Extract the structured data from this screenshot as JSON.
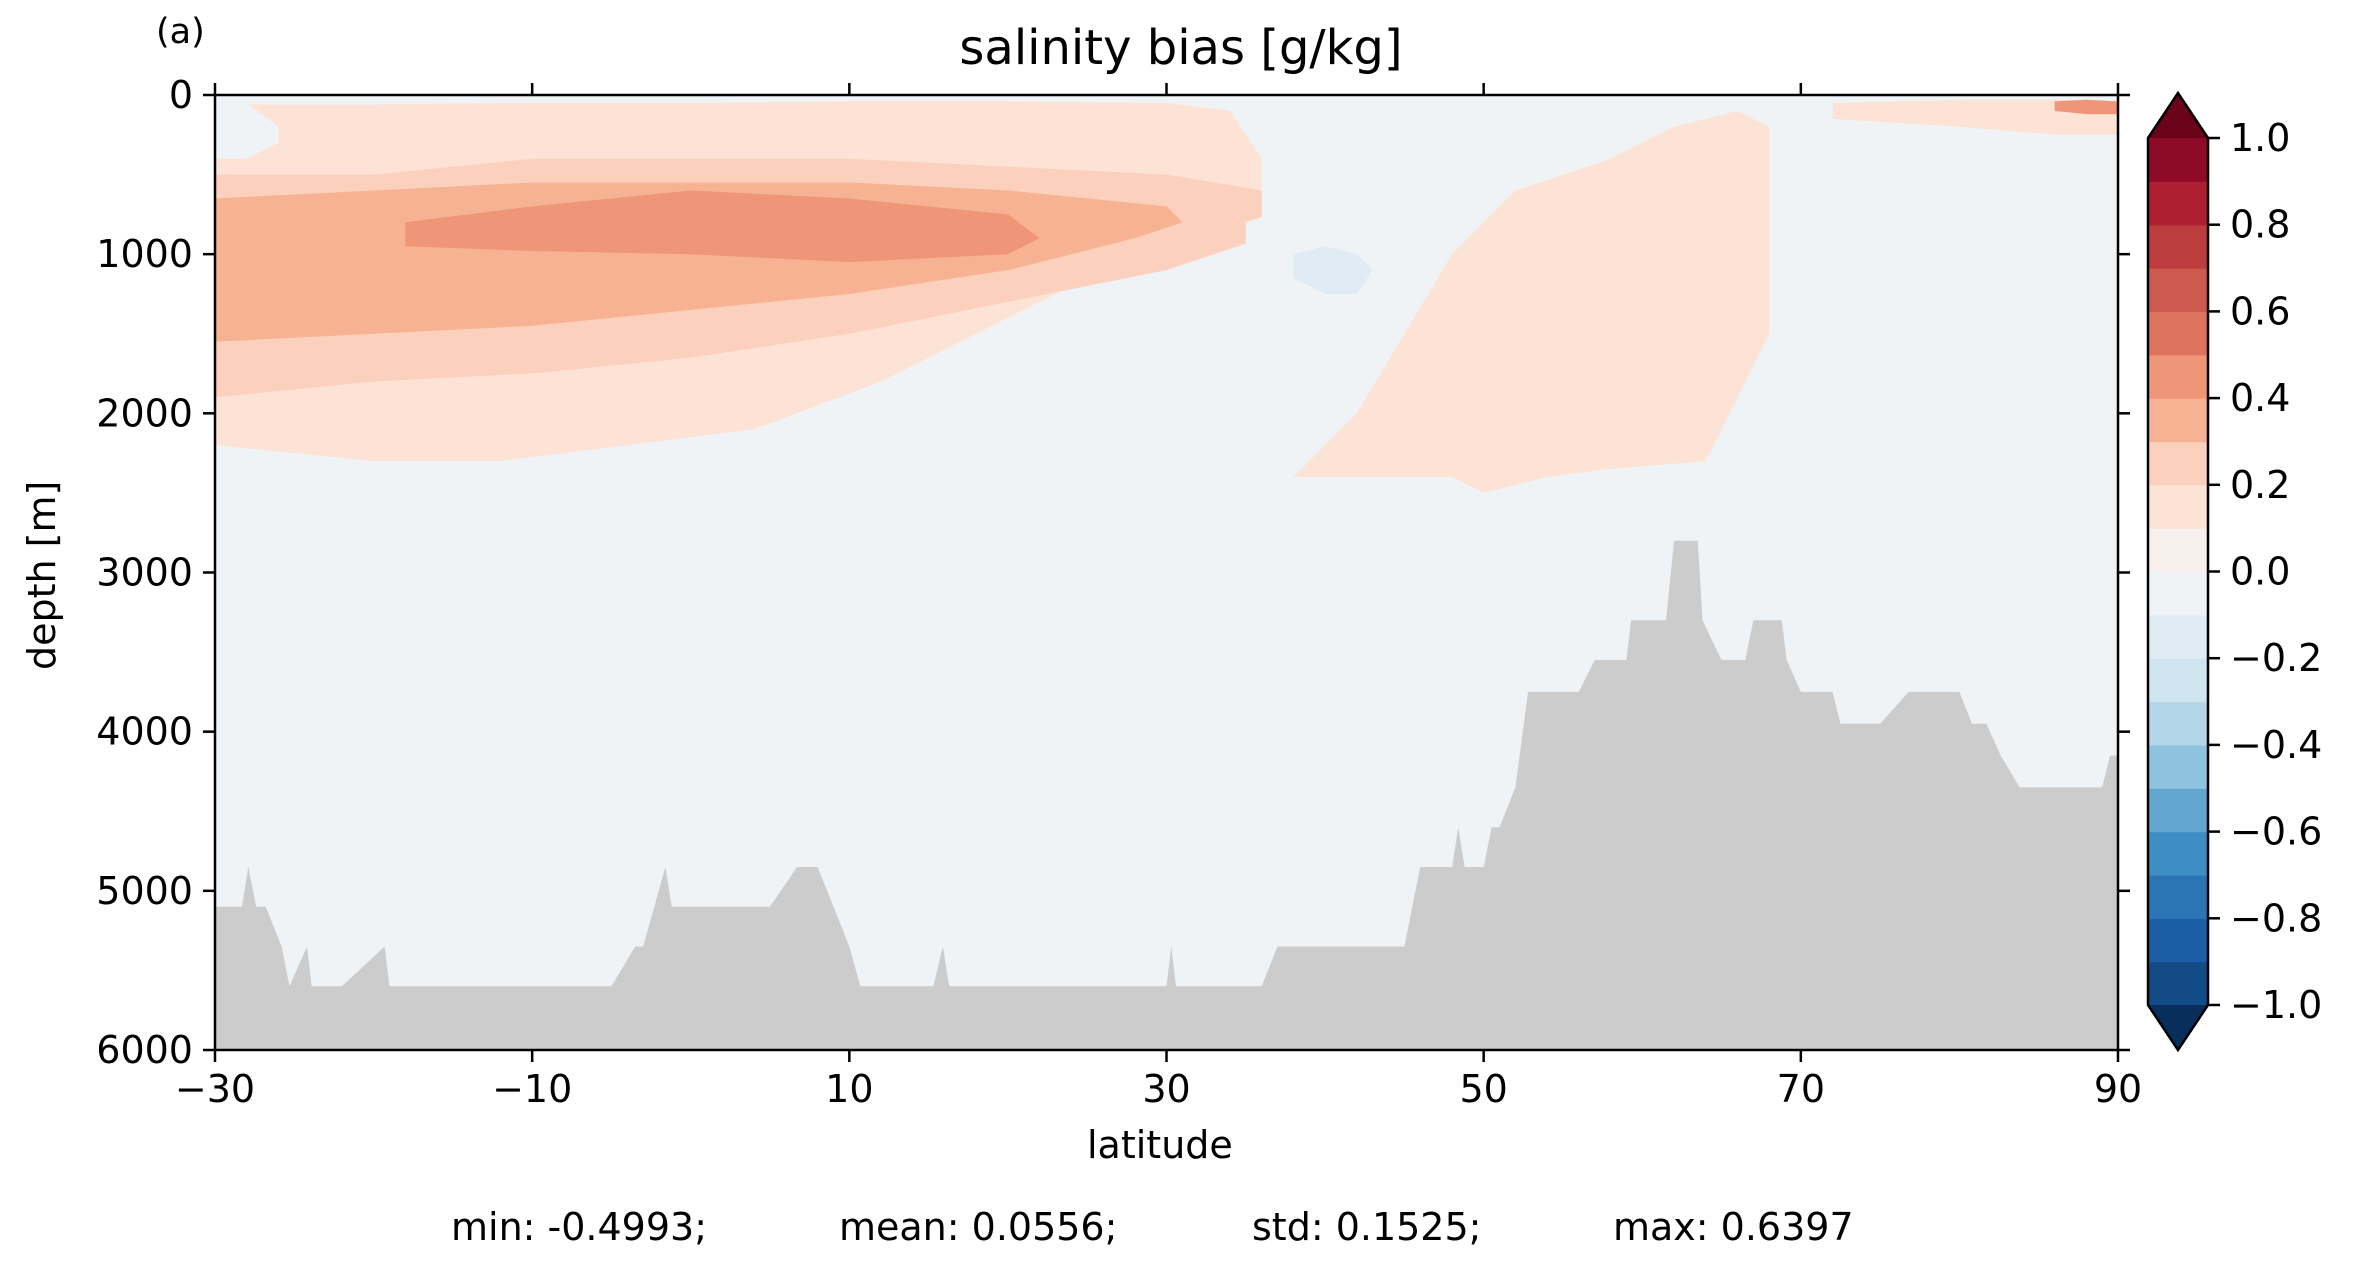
{
  "panel_label": "(a)",
  "chart_data": {
    "type": "heatmap",
    "title": "salinity bias [g/kg]",
    "xlabel": "latitude",
    "ylabel": "depth [m]",
    "xlim": [
      -30,
      90
    ],
    "ylim": [
      6000,
      0
    ],
    "xticks": [
      -30,
      -10,
      10,
      30,
      50,
      70,
      90
    ],
    "xtick_labels": [
      "−30",
      "−10",
      "10",
      "30",
      "50",
      "70",
      "90"
    ],
    "yticks": [
      0,
      1000,
      2000,
      3000,
      4000,
      5000,
      6000
    ],
    "ytick_labels": [
      "0",
      "1000",
      "2000",
      "3000",
      "4000",
      "5000",
      "6000"
    ],
    "colorbar": {
      "levels": [
        -1.0,
        -0.9,
        -0.8,
        -0.7,
        -0.6,
        -0.5,
        -0.4,
        -0.3,
        -0.2,
        -0.1,
        0.0,
        0.1,
        0.2,
        0.3,
        0.4,
        0.5,
        0.6,
        0.7,
        0.8,
        0.9,
        1.0
      ],
      "colors": [
        "#134b87",
        "#1c5ea6",
        "#2b75b5",
        "#3f8ec3",
        "#62a6d0",
        "#8fc2de",
        "#b3d6e8",
        "#d0e5f0",
        "#e0ecf3",
        "#eff3f6",
        "#f8f0ec",
        "#fce3d6",
        "#fbd1bd",
        "#f6b293",
        "#ee9677",
        "#de7360",
        "#cd5a4f",
        "#bd3c3e",
        "#ad1f31",
        "#8e0b27"
      ],
      "under_color": "#0a2e5c",
      "over_color": "#6a0319",
      "extend": "both",
      "ticks": [
        -1.0,
        -0.8,
        -0.6,
        -0.4,
        -0.2,
        0.0,
        0.2,
        0.4,
        0.6,
        0.8,
        1.0
      ],
      "tick_labels": [
        "−1.0",
        "−0.8",
        "−0.6",
        "−0.4",
        "−0.2",
        "0.0",
        "0.2",
        "0.4",
        "0.6",
        "0.8",
        "1.0"
      ]
    },
    "land_mask_color": "#cccccc",
    "bathymetry": {
      "latitude": [
        -30,
        -29.5,
        -28.3,
        -27.9,
        -27.4,
        -26.8,
        -25.8,
        -25.3,
        -24.2,
        -23.9,
        -23.6,
        -22.0,
        -19.3,
        -19.0,
        -18.4,
        -5.0,
        -3.5,
        -3.0,
        -1.6,
        -1.2,
        -0.8,
        3.0,
        5.0,
        6.7,
        8.0,
        9.0,
        10.0,
        10.7,
        12.0,
        15.3,
        15.9,
        16.3,
        30.0,
        30.3,
        30.6,
        36.0,
        37.0,
        45.0,
        46.0,
        48.0,
        48.4,
        48.8,
        50.0,
        50.5,
        51.0,
        52.0,
        52.8,
        53.4,
        54.0,
        56.0,
        57.0,
        59.0,
        59.3,
        60.0,
        61.5,
        62.0,
        62.7,
        63.5,
        63.8,
        65.0,
        66.5,
        67.0,
        68.8,
        69.1,
        70.0,
        72.0,
        72.5,
        75.0,
        76.8,
        77.5,
        80.0,
        80.8,
        81.7,
        82.6,
        83.8,
        85.0,
        89.0,
        89.5,
        90.0
      ],
      "depth": [
        5100,
        5100,
        5100,
        4850,
        5100,
        5100,
        5350,
        5600,
        5350,
        5600,
        5600,
        5600,
        5350,
        5600,
        5600,
        5600,
        5350,
        5350,
        4850,
        5100,
        5100,
        5100,
        5100,
        4850,
        4850,
        5100,
        5350,
        5600,
        5600,
        5600,
        5350,
        5600,
        5600,
        5350,
        5600,
        5600,
        5350,
        5350,
        4850,
        4850,
        4600,
        4850,
        4850,
        4600,
        4600,
        4350,
        3750,
        3750,
        3750,
        3750,
        3550,
        3550,
        3300,
        3300,
        3300,
        2800,
        2800,
        2800,
        3300,
        3550,
        3550,
        3300,
        3300,
        3550,
        3750,
        3750,
        3950,
        3950,
        3750,
        3750,
        3750,
        3950,
        3950,
        4150,
        4350,
        4350,
        4350,
        4150,
        4150
      ]
    },
    "contour_regions": [
      {
        "level": 0.1,
        "x": [
          -30,
          -20,
          -10,
          0,
          10,
          20,
          30,
          34,
          36,
          36,
          32,
          26,
          20,
          12,
          4,
          -4,
          -12,
          -20,
          -30
        ],
        "y": [
          60,
          60,
          50,
          50,
          40,
          40,
          50,
          100,
          400,
          600,
          800,
          1100,
          1400,
          1800,
          2100,
          2200,
          2300,
          2300,
          2200
        ]
      },
      {
        "level": 0.2,
        "x": [
          -30,
          -20,
          -10,
          0,
          10,
          20,
          30,
          36,
          36,
          30,
          20,
          10,
          0,
          -10,
          -20,
          -30
        ],
        "y": [
          500,
          500,
          400,
          400,
          400,
          450,
          500,
          600,
          900,
          1100,
          1300,
          1500,
          1650,
          1750,
          1800,
          1900
        ]
      },
      {
        "level": 0.3,
        "x": [
          -30,
          -20,
          -10,
          0,
          10,
          20,
          30,
          31,
          28,
          20,
          10,
          0,
          -10,
          -20,
          -30
        ],
        "y": [
          650,
          600,
          550,
          550,
          550,
          600,
          700,
          800,
          900,
          1100,
          1250,
          1350,
          1450,
          1500,
          1550
        ]
      },
      {
        "level": 0.4,
        "x": [
          -18,
          -10,
          0,
          10,
          20,
          22,
          20,
          10,
          0,
          -10,
          -18
        ],
        "y": [
          800,
          700,
          600,
          650,
          750,
          900,
          1000,
          1050,
          1000,
          980,
          950
        ]
      },
      {
        "level": 0.1,
        "x": [
          38,
          42,
          45,
          48,
          52,
          58,
          62,
          66,
          68,
          68,
          64,
          58,
          54,
          50,
          48
        ],
        "y": [
          2400,
          2000,
          1500,
          1000,
          600,
          400,
          200,
          100,
          200,
          1500,
          2300,
          2350,
          2400,
          2500,
          2400
        ]
      },
      {
        "level": -0.1,
        "x": [
          -29,
          -20,
          -10,
          0,
          10,
          20,
          30,
          40,
          48,
          50,
          48,
          40,
          30,
          20,
          10,
          0,
          -10,
          -20,
          -29
        ],
        "y": [
          3300,
          3350,
          3300,
          3300,
          3250,
          3200,
          3200,
          3250,
          3300,
          3500,
          4400,
          4800,
          4950,
          5050,
          5200,
          5100,
          4900,
          4600,
          3800
        ]
      },
      {
        "level": -0.1,
        "x": [
          35,
          38,
          40,
          42,
          44,
          44,
          41,
          38,
          35
        ],
        "y": [
          800,
          700,
          800,
          900,
          1100,
          1500,
          1600,
          1450,
          1100
        ]
      },
      {
        "level": -0.2,
        "x": [
          38,
          40,
          42,
          43,
          42,
          40,
          38
        ],
        "y": [
          1000,
          950,
          1000,
          1100,
          1250,
          1250,
          1150
        ]
      },
      {
        "level": -0.1,
        "x": [
          -30,
          -28,
          -26,
          -26,
          -28,
          -30
        ],
        "y": [
          50,
          50,
          200,
          300,
          400,
          400
        ]
      },
      {
        "level": 0.1,
        "x": [
          72,
          80,
          86,
          90,
          90,
          86,
          80,
          72
        ],
        "y": [
          50,
          30,
          30,
          40,
          250,
          250,
          200,
          150
        ]
      },
      {
        "level": 0.4,
        "x": [
          86,
          88,
          90,
          90,
          88,
          86
        ],
        "y": [
          40,
          30,
          40,
          120,
          120,
          100
        ]
      }
    ]
  },
  "stats": {
    "min": "min: -0.4993;",
    "mean": "mean: 0.0556;",
    "std": "std: 0.1525;",
    "max": "max: 0.6397"
  }
}
